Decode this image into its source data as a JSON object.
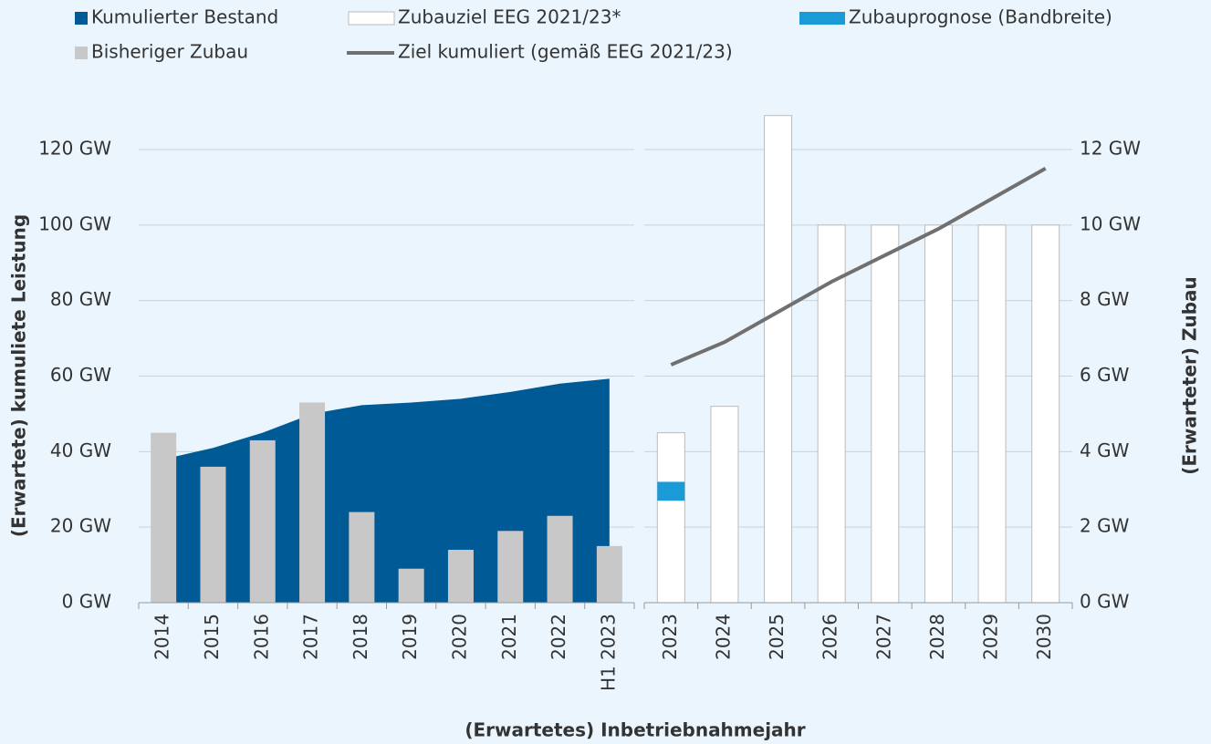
{
  "chart_data": {
    "type": "combo",
    "xlabel": "(Erwartetes) Inbetriebnahmejahr",
    "ylabel": "(Erwartete) kumuliete Leistung",
    "y2label": "(Erwarteter) Zubau",
    "left_categories": [
      "2014",
      "2015",
      "2016",
      "2017",
      "2018",
      "2019",
      "2020",
      "2021",
      "2022",
      "H1 2023"
    ],
    "right_categories": [
      "2023",
      "2024",
      "2025",
      "2026",
      "2027",
      "2028",
      "2029",
      "2030"
    ],
    "ylim": [
      0,
      120
    ],
    "yticks": [
      {
        "value": 0,
        "label": "0 GW"
      },
      {
        "value": 20,
        "label": "20 GW"
      },
      {
        "value": 40,
        "label": "40 GW"
      },
      {
        "value": 60,
        "label": "60 GW"
      },
      {
        "value": 80,
        "label": "80 GW"
      },
      {
        "value": 100,
        "label": "100 GW"
      },
      {
        "value": 120,
        "label": "120 GW"
      }
    ],
    "y2lim": [
      0,
      12
    ],
    "y2ticks": [
      {
        "value": 0,
        "label": "0 GW"
      },
      {
        "value": 2,
        "label": "2 GW"
      },
      {
        "value": 4,
        "label": "4 GW"
      },
      {
        "value": 6,
        "label": "6 GW"
      },
      {
        "value": 8,
        "label": "8 GW"
      },
      {
        "value": 10,
        "label": "10 GW"
      },
      {
        "value": 12,
        "label": "12 GW"
      }
    ],
    "grid": true,
    "series": [
      {
        "name": "Kumulierter Bestand",
        "color": "#005a96",
        "kind": "area",
        "panel": "left",
        "values": [
          38,
          41,
          45,
          50,
          52.3,
          53,
          54,
          55.8,
          58,
          59.3
        ]
      },
      {
        "name": "Zubauziel EEG 2021/23*",
        "color": "#ffffff",
        "kind": "bar",
        "panel": "right",
        "axis": "y2",
        "values": [
          4.5,
          5.2,
          12.9,
          10,
          10,
          10,
          10,
          10
        ]
      },
      {
        "name": "Zubauprognose (Bandbreite)",
        "color": "#1a9bd7",
        "kind": "range",
        "panel": "right",
        "axis": "y2",
        "low": [
          2.7
        ],
        "high": [
          3.2
        ]
      },
      {
        "name": "Bisheriger Zubau",
        "color": "#c8c8c8",
        "kind": "bar",
        "panel": "left",
        "axis": "y2",
        "values": [
          4.5,
          3.6,
          4.3,
          5.3,
          2.4,
          0.9,
          1.4,
          1.9,
          2.3,
          1.5
        ]
      },
      {
        "name": "Ziel kumuliert (gemäß EEG 2021/23)",
        "color": "#707070",
        "kind": "line",
        "panel": "right",
        "values": [
          63,
          69,
          77,
          85,
          92,
          99,
          107,
          115
        ]
      }
    ]
  }
}
